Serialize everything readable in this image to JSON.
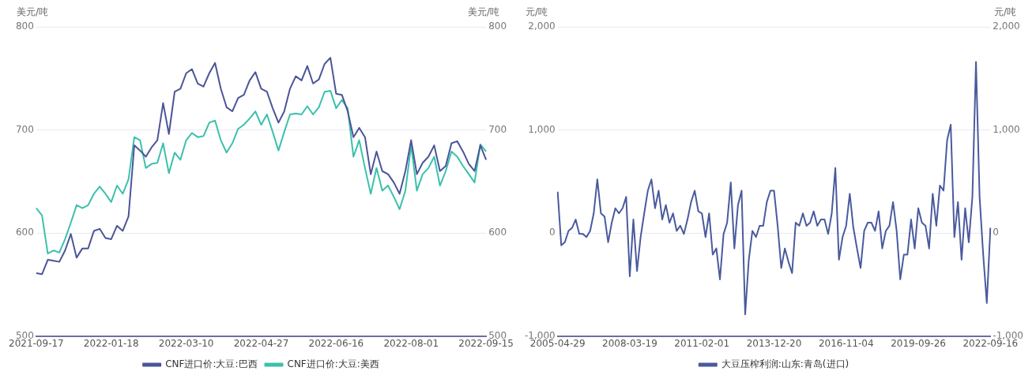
{
  "chart_data": [
    {
      "type": "line",
      "ylabel": "美元/吨",
      "y2label": "美元/吨",
      "categories": [
        "2021-09-17",
        null,
        null,
        null,
        null,
        null,
        null,
        null,
        null,
        null,
        null,
        null,
        null,
        "2022-01-18",
        null,
        null,
        null,
        null,
        null,
        null,
        null,
        null,
        null,
        null,
        null,
        null,
        "2022-03-10",
        null,
        null,
        null,
        null,
        null,
        null,
        null,
        null,
        null,
        null,
        null,
        null,
        "2022-04-27",
        null,
        null,
        null,
        null,
        null,
        null,
        null,
        null,
        null,
        null,
        null,
        null,
        "2022-06-16",
        null,
        null,
        null,
        null,
        null,
        null,
        null,
        null,
        null,
        null,
        null,
        null,
        "2022-08-01",
        null,
        null,
        null,
        null,
        null,
        null,
        null,
        null,
        null,
        null,
        null,
        null,
        "2022-09-15"
      ],
      "series": [
        {
          "name": "CNF进口价:大豆:巴西",
          "color": "#4b5598",
          "values": [
            561,
            560,
            574,
            573,
            572,
            583,
            599,
            576,
            585,
            585,
            602,
            604,
            595,
            594,
            607,
            602,
            616,
            685,
            680,
            674,
            683,
            690,
            726,
            696,
            737,
            740,
            755,
            759,
            745,
            742,
            755,
            765,
            740,
            722,
            718,
            731,
            734,
            748,
            756,
            740,
            737,
            721,
            707,
            718,
            740,
            752,
            748,
            762,
            745,
            749,
            764,
            770,
            735,
            734,
            718,
            693,
            702,
            693,
            657,
            679,
            660,
            657,
            649,
            638,
            660,
            690,
            657,
            668,
            674,
            685,
            660,
            665,
            687,
            689,
            679,
            667,
            660,
            685,
            671
          ]
        },
        {
          "name": "CNF进口价:大豆:美西",
          "color": "#3cc0ad",
          "values": [
            624,
            617,
            580,
            583,
            581,
            594,
            610,
            627,
            624,
            627,
            638,
            645,
            638,
            630,
            646,
            638,
            652,
            693,
            690,
            663,
            667,
            668,
            687,
            658,
            678,
            671,
            690,
            697,
            693,
            694,
            707,
            709,
            690,
            678,
            687,
            701,
            705,
            711,
            718,
            705,
            715,
            698,
            680,
            698,
            715,
            716,
            715,
            723,
            715,
            722,
            737,
            738,
            721,
            729,
            721,
            674,
            690,
            663,
            638,
            663,
            641,
            646,
            635,
            623,
            641,
            685,
            641,
            657,
            663,
            674,
            646,
            660,
            679,
            674,
            665,
            657,
            649,
            686,
            679
          ]
        }
      ],
      "ylim": [
        500,
        800
      ],
      "yticks": [
        500,
        600,
        700,
        800
      ],
      "y2lim": [
        500,
        800
      ],
      "y2ticks": [
        500,
        600,
        700,
        800
      ],
      "grid": "y",
      "legend": "bottom",
      "marker": "none",
      "line_style": "solid"
    },
    {
      "type": "line",
      "ylabel": "元/吨",
      "y2label": "元/吨",
      "categories": [
        "2005-04-29",
        null,
        null,
        null,
        null,
        null,
        null,
        null,
        null,
        null,
        null,
        null,
        null,
        null,
        null,
        null,
        null,
        null,
        null,
        null,
        "2008-03-19",
        null,
        null,
        null,
        null,
        null,
        null,
        null,
        null,
        null,
        null,
        null,
        null,
        null,
        null,
        null,
        null,
        null,
        null,
        null,
        "2011-02-01",
        null,
        null,
        null,
        null,
        null,
        null,
        null,
        null,
        null,
        null,
        null,
        null,
        null,
        null,
        null,
        null,
        null,
        null,
        null,
        "2013-12-20",
        null,
        null,
        null,
        null,
        null,
        null,
        null,
        null,
        null,
        null,
        null,
        null,
        null,
        null,
        null,
        null,
        null,
        null,
        null,
        "2016-11-04",
        null,
        null,
        null,
        null,
        null,
        null,
        null,
        null,
        null,
        null,
        null,
        null,
        null,
        null,
        null,
        null,
        null,
        null,
        null,
        "2019-09-26",
        null,
        null,
        null,
        null,
        null,
        null,
        null,
        null,
        null,
        null,
        null,
        null,
        null,
        null,
        null,
        null,
        null,
        null,
        null,
        "2022-09-16"
      ],
      "series": [
        {
          "name": "大豆压榨利润:山东:青岛(进口)",
          "color": "#4a5a9e",
          "values": [
            400,
            -120,
            -90,
            20,
            50,
            130,
            -10,
            -10,
            -40,
            20,
            190,
            520,
            190,
            160,
            -90,
            100,
            240,
            190,
            240,
            350,
            -420,
            130,
            -370,
            -40,
            190,
            410,
            520,
            240,
            410,
            130,
            270,
            100,
            190,
            20,
            70,
            -10,
            130,
            300,
            410,
            210,
            190,
            -40,
            190,
            -210,
            -150,
            -450,
            -10,
            100,
            490,
            -150,
            270,
            410,
            -790,
            -260,
            20,
            -40,
            70,
            70,
            300,
            410,
            410,
            70,
            -340,
            -150,
            -280,
            -390,
            100,
            70,
            190,
            70,
            100,
            210,
            70,
            130,
            130,
            -10,
            190,
            630,
            -260,
            -40,
            70,
            380,
            50,
            -150,
            -340,
            20,
            100,
            100,
            20,
            210,
            -150,
            20,
            70,
            300,
            20,
            -450,
            -210,
            -210,
            130,
            -150,
            240,
            100,
            70,
            -150,
            380,
            70,
            460,
            410,
            900,
            1050,
            -40,
            300,
            -260,
            240,
            -90,
            350,
            1660,
            350,
            -210,
            -680,
            50
          ]
        }
      ],
      "ylim": [
        -1000,
        2000
      ],
      "yticks": [
        {
          "value": -1000,
          "label": "-1,000"
        },
        0,
        {
          "value": 1000,
          "label": "1,000"
        },
        {
          "value": 2000,
          "label": "2,000"
        }
      ],
      "y2lim": [
        -1000,
        2000
      ],
      "y2ticks": [
        {
          "value": -1000,
          "label": "-1,000"
        },
        0,
        {
          "value": 1000,
          "label": "1,000"
        },
        {
          "value": 2000,
          "label": "2,000"
        }
      ],
      "grid": "y",
      "legend": "bottom",
      "marker": "none",
      "line_style": "solid"
    }
  ]
}
